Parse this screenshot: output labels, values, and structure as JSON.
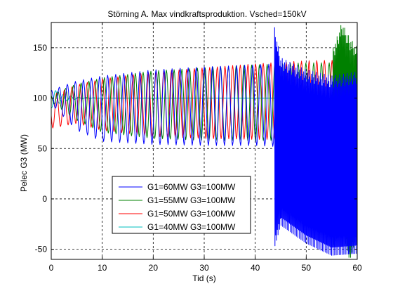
{
  "chart_data": {
    "type": "line",
    "title": "Störning A. Max vindkraftsproduktion. Vsched=150kV",
    "xlabel": "Tid (s)",
    "ylabel": "Pelec G3 (MW)",
    "xlim": [
      0,
      60
    ],
    "ylim": [
      -60,
      175
    ],
    "xticks": [
      0,
      10,
      20,
      30,
      40,
      50,
      60
    ],
    "yticks": [
      -50,
      0,
      50,
      100,
      150
    ],
    "xtick_labels": [
      "0",
      "10",
      "20",
      "30",
      "40",
      "50",
      "60"
    ],
    "ytick_labels": [
      "-50",
      "0",
      "50",
      "100",
      "150"
    ],
    "grid": true,
    "grid_style": "dashed",
    "legend_position": "lower-center",
    "series": [
      {
        "name": "G1=60MW G3=100MW",
        "color": "#0000ff",
        "oscillation_period_s": 1.58,
        "instability_onset_s": 43.8,
        "upper_envelope": [
          [
            0,
            108
          ],
          [
            5,
            117
          ],
          [
            10,
            122
          ],
          [
            20,
            128
          ],
          [
            30,
            131
          ],
          [
            40,
            133
          ],
          [
            43.8,
            134
          ]
        ],
        "lower_envelope": [
          [
            0,
            94
          ],
          [
            5,
            68
          ],
          [
            10,
            57
          ],
          [
            20,
            54
          ],
          [
            30,
            53
          ],
          [
            40,
            53
          ],
          [
            43.8,
            52
          ]
        ],
        "unstable_upper": [
          [
            43.8,
            170
          ],
          [
            45,
            140
          ],
          [
            50,
            128
          ],
          [
            55,
            122
          ],
          [
            60,
            126
          ]
        ],
        "unstable_lower": [
          [
            43.8,
            -52
          ],
          [
            45,
            -30
          ],
          [
            50,
            -48
          ],
          [
            55,
            -60
          ],
          [
            60,
            -58
          ]
        ]
      },
      {
        "name": "G1=55MW G3=100MW",
        "color": "#008000",
        "oscillation_period_s": 1.52,
        "instability_onset_s": 55.3,
        "upper_envelope": [
          [
            0,
            104
          ],
          [
            5,
            114
          ],
          [
            10,
            120
          ],
          [
            20,
            127
          ],
          [
            30,
            130
          ],
          [
            40,
            133
          ],
          [
            50,
            135
          ],
          [
            55.3,
            135
          ]
        ],
        "lower_envelope": [
          [
            0,
            96
          ],
          [
            5,
            78
          ],
          [
            10,
            66
          ],
          [
            20,
            60
          ],
          [
            30,
            58
          ],
          [
            40,
            58
          ],
          [
            50,
            58
          ],
          [
            55.3,
            58
          ]
        ],
        "unstable_upper": [
          [
            55.3,
            150
          ],
          [
            57,
            175
          ],
          [
            58.5,
            160
          ],
          [
            60,
            150
          ]
        ],
        "unstable_lower": [
          [
            55.3,
            -50
          ],
          [
            57,
            -30
          ],
          [
            58.5,
            -65
          ],
          [
            60,
            -40
          ]
        ]
      },
      {
        "name": "G1=50MW G3=100MW",
        "color": "#ff0000",
        "oscillation_period_s": 1.5,
        "upper_envelope": [
          [
            0,
            103
          ],
          [
            5,
            113
          ],
          [
            10,
            119
          ],
          [
            20,
            126
          ],
          [
            30,
            130
          ],
          [
            40,
            134
          ],
          [
            50,
            137
          ],
          [
            60,
            138
          ]
        ],
        "lower_envelope": [
          [
            0,
            70
          ],
          [
            5,
            75
          ],
          [
            10,
            68
          ],
          [
            20,
            62
          ],
          [
            30,
            60
          ],
          [
            40,
            59
          ],
          [
            50,
            59
          ],
          [
            60,
            58
          ]
        ]
      },
      {
        "name": "G1=40MW G3=100MW",
        "color": "#00bfbf",
        "oscillation_period_s": 1.5,
        "upper_envelope": [
          [
            0,
            110
          ],
          [
            2,
            104
          ],
          [
            5,
            101
          ],
          [
            10,
            100
          ],
          [
            60,
            100
          ]
        ],
        "lower_envelope": [
          [
            0,
            90
          ],
          [
            2,
            96
          ],
          [
            5,
            99
          ],
          [
            10,
            100
          ],
          [
            60,
            100
          ]
        ]
      }
    ]
  }
}
